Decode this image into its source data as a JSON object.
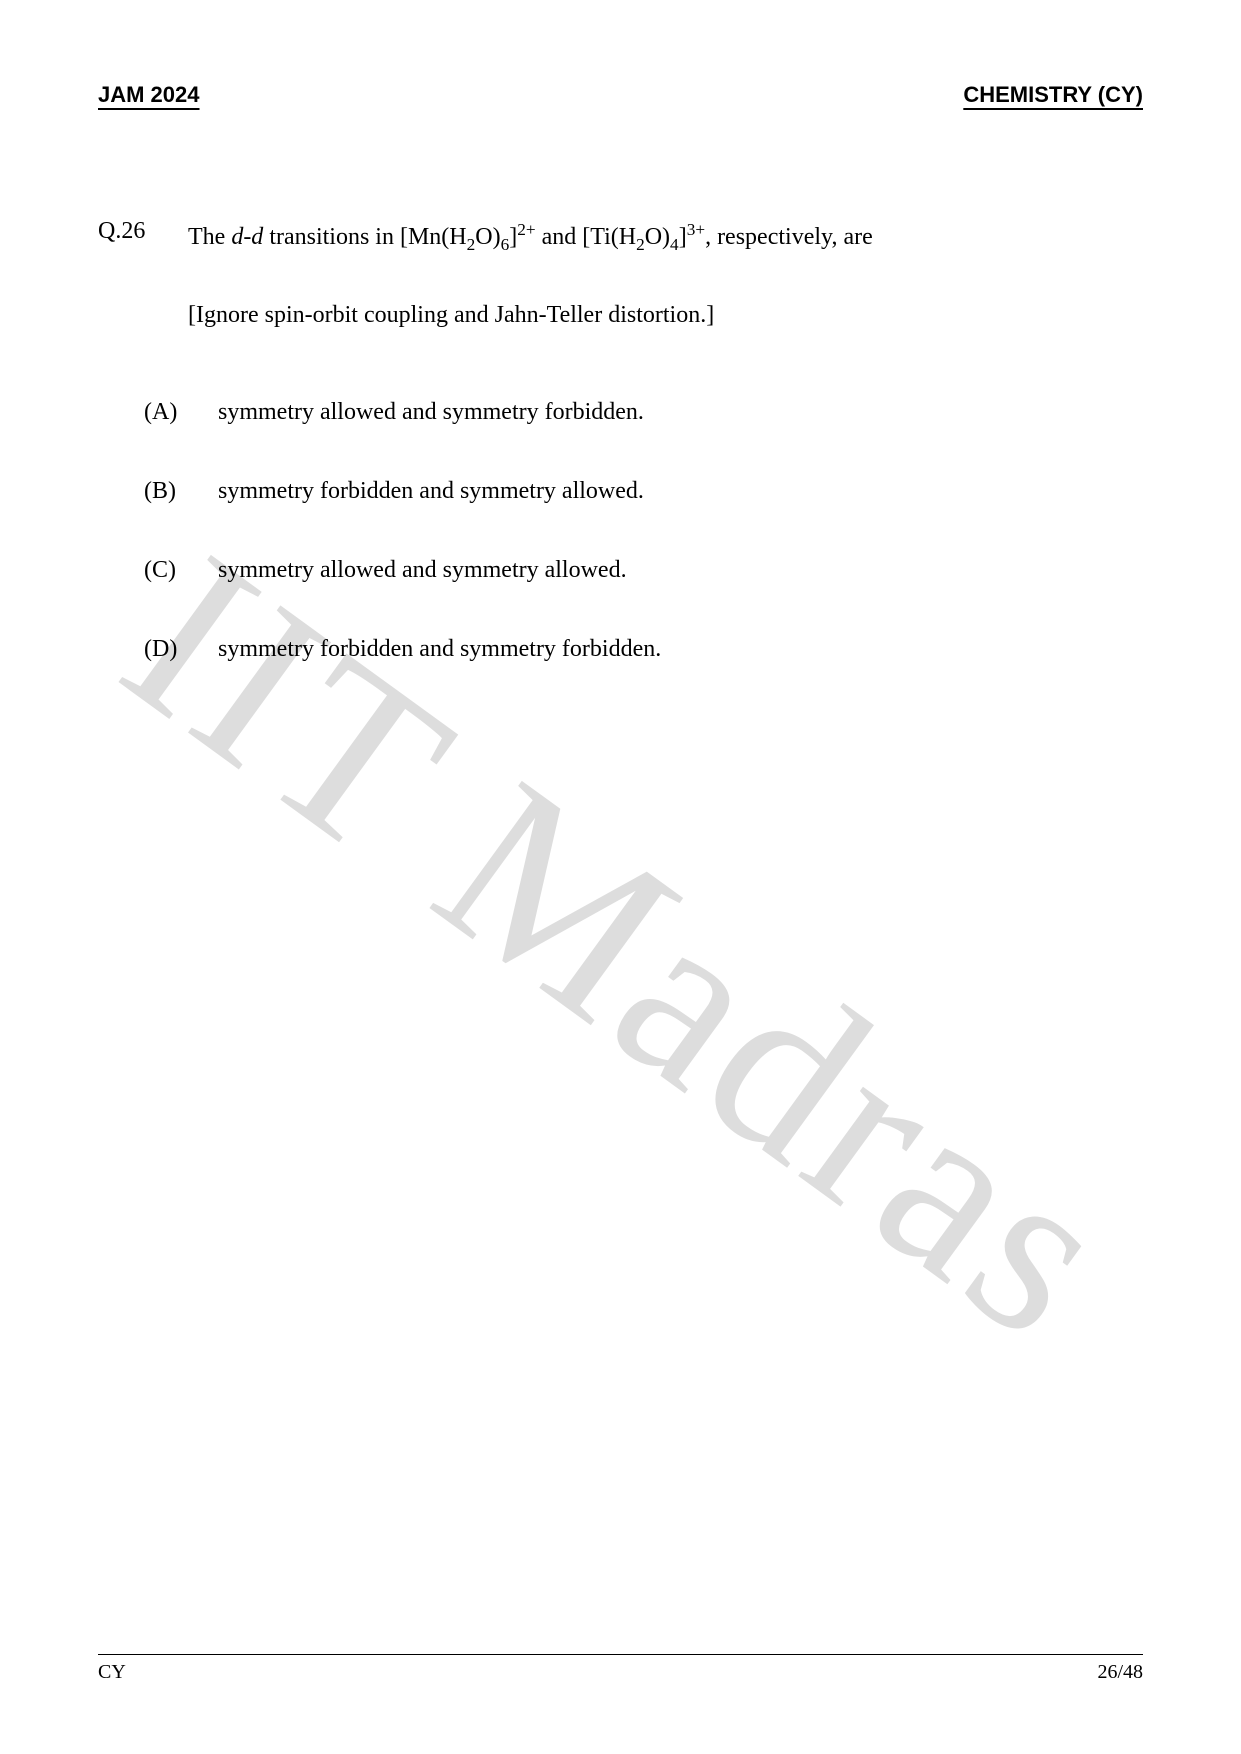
{
  "header": {
    "left": "JAM 2024",
    "right": "CHEMISTRY (CY)"
  },
  "watermark": "IIT Madras",
  "question": {
    "number": "Q.26",
    "stem_pre": "The ",
    "stem_dd": "d-d",
    "stem_mid1": " transitions in [Mn(H",
    "sub1": "2",
    "stem_mid2": "O)",
    "sub2": "6",
    "stem_mid3": "]",
    "sup1": "2+",
    "stem_mid4": " and [Ti(H",
    "sub3": "2",
    "stem_mid5": "O)",
    "sub4": "4",
    "stem_mid6": "]",
    "sup2": "3+",
    "stem_post": ", respectively, are",
    "note": "[Ignore spin-orbit coupling and Jahn-Teller distortion.]"
  },
  "options": [
    {
      "label": "(A)",
      "text": "symmetry allowed and symmetry forbidden."
    },
    {
      "label": "(B)",
      "text": "symmetry forbidden and symmetry allowed."
    },
    {
      "label": "(C)",
      "text": "symmetry allowed and symmetry allowed."
    },
    {
      "label": "(D)",
      "text": "symmetry forbidden and symmetry forbidden."
    }
  ],
  "footer": {
    "left": "CY",
    "right": "26/48"
  },
  "colors": {
    "text": "#000000",
    "background": "#ffffff",
    "watermark": "#dddddd"
  },
  "fontsizes": {
    "header": 22,
    "body": 24,
    "footer": 20,
    "watermark": 240
  }
}
